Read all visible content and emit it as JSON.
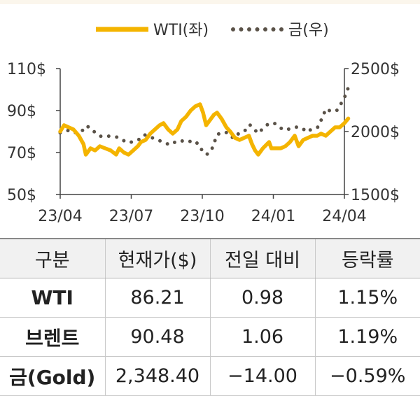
{
  "chart_data": {
    "type": "line",
    "x_ticks": [
      "23/04",
      "23/07",
      "23/10",
      "24/01",
      "24/04"
    ],
    "x_range": [
      "2023-04",
      "2024-04"
    ],
    "y_left": {
      "ticks": [
        "110$",
        "90$",
        "70$",
        "50$"
      ],
      "range": [
        50,
        110
      ]
    },
    "y_right": {
      "ticks": [
        "2500$",
        "2000$",
        "1500$"
      ],
      "range": [
        1500,
        2500
      ]
    },
    "legend_position": "top-center",
    "series": [
      {
        "name": "WTI(좌)",
        "axis": "left",
        "style": "solid",
        "color": "#f4b400",
        "points": [
          [
            "2023-04-01",
            80
          ],
          [
            "2023-04-06",
            83
          ],
          [
            "2023-04-12",
            82
          ],
          [
            "2023-04-18",
            81
          ],
          [
            "2023-04-25",
            78
          ],
          [
            "2023-05-01",
            74
          ],
          [
            "2023-05-04",
            69
          ],
          [
            "2023-05-10",
            72
          ],
          [
            "2023-05-16",
            71
          ],
          [
            "2023-05-22",
            73
          ],
          [
            "2023-05-29",
            72
          ],
          [
            "2023-06-05",
            71
          ],
          [
            "2023-06-12",
            69
          ],
          [
            "2023-06-16",
            72
          ],
          [
            "2023-06-22",
            70
          ],
          [
            "2023-06-28",
            69
          ],
          [
            "2023-07-04",
            71
          ],
          [
            "2023-07-10",
            73
          ],
          [
            "2023-07-14",
            75
          ],
          [
            "2023-07-20",
            76
          ],
          [
            "2023-07-26",
            79
          ],
          [
            "2023-08-01",
            81
          ],
          [
            "2023-08-07",
            83
          ],
          [
            "2023-08-12",
            84
          ],
          [
            "2023-08-18",
            81
          ],
          [
            "2023-08-24",
            79
          ],
          [
            "2023-08-30",
            81
          ],
          [
            "2023-09-04",
            85
          ],
          [
            "2023-09-10",
            87
          ],
          [
            "2023-09-16",
            90
          ],
          [
            "2023-09-22",
            92
          ],
          [
            "2023-09-28",
            93
          ],
          [
            "2023-10-02",
            89
          ],
          [
            "2023-10-06",
            83
          ],
          [
            "2023-10-12",
            86
          ],
          [
            "2023-10-16",
            88
          ],
          [
            "2023-10-20",
            89
          ],
          [
            "2023-10-26",
            86
          ],
          [
            "2023-11-01",
            82
          ],
          [
            "2023-11-06",
            80
          ],
          [
            "2023-11-12",
            77
          ],
          [
            "2023-11-18",
            76
          ],
          [
            "2023-11-24",
            77
          ],
          [
            "2023-11-30",
            78
          ],
          [
            "2023-12-04",
            74
          ],
          [
            "2023-12-08",
            71
          ],
          [
            "2023-12-12",
            69
          ],
          [
            "2023-12-18",
            72
          ],
          [
            "2023-12-26",
            75
          ],
          [
            "2023-12-29",
            72
          ],
          [
            "2024-01-04",
            72
          ],
          [
            "2024-01-10",
            72
          ],
          [
            "2024-01-16",
            73
          ],
          [
            "2024-01-22",
            75
          ],
          [
            "2024-01-28",
            78
          ],
          [
            "2024-02-02",
            73
          ],
          [
            "2024-02-08",
            76
          ],
          [
            "2024-02-14",
            77
          ],
          [
            "2024-02-20",
            78
          ],
          [
            "2024-02-26",
            78
          ],
          [
            "2024-03-02",
            79
          ],
          [
            "2024-03-08",
            78
          ],
          [
            "2024-03-14",
            80
          ],
          [
            "2024-03-20",
            82
          ],
          [
            "2024-03-26",
            82
          ],
          [
            "2024-04-01",
            84
          ],
          [
            "2024-04-06",
            86.21
          ]
        ]
      },
      {
        "name": "금(우)",
        "axis": "right",
        "style": "dotted",
        "color": "#5a5248",
        "points": [
          [
            "2023-04-01",
            1990
          ],
          [
            "2023-04-08",
            2005
          ],
          [
            "2023-04-14",
            2010
          ],
          [
            "2023-04-21",
            1990
          ],
          [
            "2023-04-28",
            1995
          ],
          [
            "2023-05-04",
            2045
          ],
          [
            "2023-05-10",
            2030
          ],
          [
            "2023-05-17",
            1985
          ],
          [
            "2023-05-24",
            1960
          ],
          [
            "2023-05-31",
            1965
          ],
          [
            "2023-06-07",
            1960
          ],
          [
            "2023-06-14",
            1955
          ],
          [
            "2023-06-21",
            1930
          ],
          [
            "2023-06-28",
            1910
          ],
          [
            "2023-07-04",
            1920
          ],
          [
            "2023-07-11",
            1935
          ],
          [
            "2023-07-18",
            1975
          ],
          [
            "2023-07-25",
            1960
          ],
          [
            "2023-08-01",
            1940
          ],
          [
            "2023-08-08",
            1925
          ],
          [
            "2023-08-15",
            1905
          ],
          [
            "2023-08-22",
            1895
          ],
          [
            "2023-08-29",
            1925
          ],
          [
            "2023-09-05",
            1925
          ],
          [
            "2023-09-12",
            1915
          ],
          [
            "2023-09-19",
            1930
          ],
          [
            "2023-09-26",
            1900
          ],
          [
            "2023-10-03",
            1825
          ],
          [
            "2023-10-08",
            1820
          ],
          [
            "2023-10-14",
            1870
          ],
          [
            "2023-10-20",
            1975
          ],
          [
            "2023-10-27",
            1995
          ],
          [
            "2023-11-03",
            1990
          ],
          [
            "2023-11-10",
            1945
          ],
          [
            "2023-11-17",
            1985
          ],
          [
            "2023-11-24",
            2000
          ],
          [
            "2023-12-01",
            2055
          ],
          [
            "2023-12-05",
            2030
          ],
          [
            "2023-12-12",
            1985
          ],
          [
            "2023-12-19",
            2030
          ],
          [
            "2023-12-26",
            2065
          ],
          [
            "2024-01-02",
            2065
          ],
          [
            "2024-01-09",
            2030
          ],
          [
            "2024-01-16",
            2010
          ],
          [
            "2024-01-23",
            2025
          ],
          [
            "2024-01-30",
            2035
          ],
          [
            "2024-02-06",
            2030
          ],
          [
            "2024-02-13",
            1995
          ],
          [
            "2024-02-20",
            2025
          ],
          [
            "2024-02-27",
            2035
          ],
          [
            "2024-03-05",
            2130
          ],
          [
            "2024-03-08",
            2180
          ],
          [
            "2024-03-15",
            2160
          ],
          [
            "2024-03-22",
            2165
          ],
          [
            "2024-03-29",
            2235
          ],
          [
            "2024-04-03",
            2295
          ],
          [
            "2024-04-06",
            2348.4
          ]
        ]
      }
    ]
  },
  "table": {
    "headers": [
      "구분",
      "현재가($)",
      "전일 대비",
      "등락률"
    ],
    "rows": [
      {
        "label": "WTI",
        "price": "86.21",
        "change": "0.98",
        "rate": "1.15%"
      },
      {
        "label": "브렌트",
        "price": "90.48",
        "change": "1.06",
        "rate": "1.19%"
      },
      {
        "label": "금(Gold)",
        "price": "2,348.40",
        "change": "−14.00",
        "rate": "−0.59%"
      }
    ]
  }
}
